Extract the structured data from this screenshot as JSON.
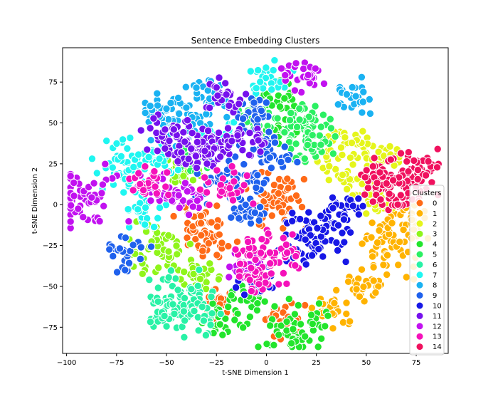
{
  "chart_data": {
    "type": "scatter",
    "title": "Sentence Embedding Clusters",
    "xlabel": "t-SNE Dimension 1",
    "ylabel": "t-SNE Dimension 2",
    "xlim": [
      -102,
      91
    ],
    "ylim": [
      -91,
      96
    ],
    "xticks": [
      -100,
      -75,
      -50,
      -25,
      0,
      25,
      50,
      75
    ],
    "yticks": [
      -75,
      -50,
      -25,
      0,
      25,
      50,
      75
    ],
    "grid": false,
    "legend": {
      "title": "Clusters",
      "position": "right"
    },
    "series": [
      {
        "name": "0",
        "color": "#ff6a17",
        "centers": [
          [
            5,
            2
          ],
          [
            -28,
            -22
          ],
          [
            -25,
            -62
          ],
          [
            8,
            -68
          ],
          [
            -35,
            -10
          ]
        ]
      },
      {
        "name": "1",
        "color": "#ffb300",
        "centers": [
          [
            62,
            -25
          ],
          [
            48,
            -50
          ],
          [
            33,
            -65
          ],
          [
            70,
            -10
          ]
        ]
      },
      {
        "name": "2",
        "color": "#e5f51b",
        "centers": [
          [
            45,
            18
          ],
          [
            58,
            28
          ],
          [
            38,
            38
          ],
          [
            55,
            2
          ]
        ]
      },
      {
        "name": "3",
        "color": "#8ff51a",
        "centers": [
          [
            -55,
            -28
          ],
          [
            -33,
            -44
          ],
          [
            -40,
            20
          ]
        ]
      },
      {
        "name": "4",
        "color": "#22e52c",
        "centers": [
          [
            15,
            -78
          ],
          [
            -8,
            -57
          ],
          [
            10,
            48
          ],
          [
            4,
            68
          ],
          [
            -22,
            -70
          ]
        ]
      },
      {
        "name": "5",
        "color": "#2bf062",
        "centers": [
          [
            18,
            48
          ],
          [
            22,
            36
          ],
          [
            -5,
            52
          ],
          [
            -38,
            30
          ]
        ]
      },
      {
        "name": "6",
        "color": "#28f2a6",
        "centers": [
          [
            -42,
            -58
          ],
          [
            -50,
            -65
          ],
          [
            -35,
            -70
          ]
        ]
      },
      {
        "name": "7",
        "color": "#1ff6f1",
        "centers": [
          [
            -70,
            22
          ],
          [
            -55,
            28
          ],
          [
            -62,
            -5
          ],
          [
            2,
            80
          ],
          [
            -25,
            45
          ]
        ]
      },
      {
        "name": "8",
        "color": "#1ab2f2",
        "centers": [
          [
            -40,
            52
          ],
          [
            -28,
            68
          ],
          [
            -55,
            56
          ],
          [
            42,
            65
          ]
        ]
      },
      {
        "name": "9",
        "color": "#1f61ed",
        "centers": [
          [
            -18,
            18
          ],
          [
            -10,
            -5
          ],
          [
            5,
            30
          ],
          [
            -5,
            55
          ],
          [
            -70,
            -30
          ]
        ]
      },
      {
        "name": "10",
        "color": "#1717e6",
        "centers": [
          [
            28,
            -18
          ],
          [
            18,
            -28
          ],
          [
            38,
            -2
          ],
          [
            -5,
            -45
          ]
        ]
      },
      {
        "name": "11",
        "color": "#7611ed",
        "centers": [
          [
            -45,
            40
          ],
          [
            -25,
            38
          ],
          [
            -35,
            30
          ],
          [
            -10,
            40
          ],
          [
            -20,
            65
          ]
        ]
      },
      {
        "name": "12",
        "color": "#c211f0",
        "centers": [
          [
            -90,
            4
          ],
          [
            -55,
            10
          ],
          [
            -10,
            -38
          ],
          [
            18,
            80
          ],
          [
            -40,
            5
          ]
        ]
      },
      {
        "name": "13",
        "color": "#f511ba",
        "centers": [
          [
            0,
            -30
          ],
          [
            -5,
            -45
          ],
          [
            -60,
            15
          ],
          [
            -20,
            10
          ]
        ]
      },
      {
        "name": "14",
        "color": "#f0115e",
        "centers": [
          [
            68,
            15
          ],
          [
            62,
            5
          ],
          [
            75,
            22
          ],
          [
            55,
            20
          ]
        ]
      }
    ]
  }
}
